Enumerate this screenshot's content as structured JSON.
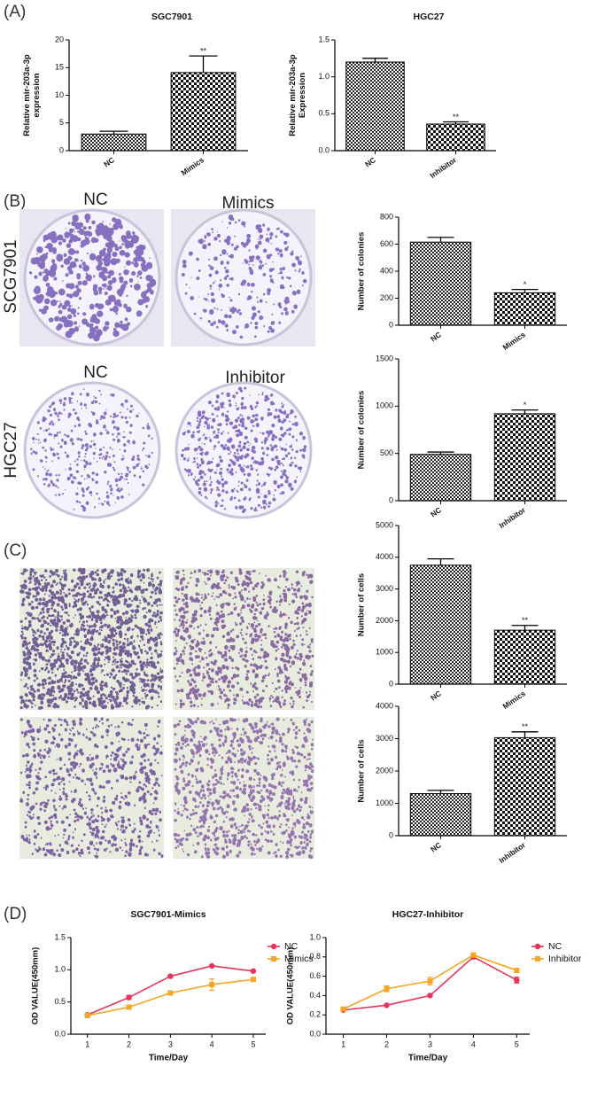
{
  "panel_labels": [
    "(A)",
    "(B)",
    "(C)",
    "(D)"
  ],
  "images": {
    "row_labels": [
      "SCG7901",
      "HGC27"
    ],
    "col_labels": [
      [
        "NC",
        "Mimics"
      ],
      [
        "NC",
        "Inhibitor"
      ]
    ]
  },
  "chart_data": [
    {
      "type": "bar",
      "title": "SGC7901",
      "ylabel": [
        "Relative mir-203a-3p",
        "expression"
      ],
      "categories": [
        "NC",
        "Mimics"
      ],
      "values": [
        3.0,
        14.1
      ],
      "errors": [
        0.5,
        3.0
      ],
      "significance": [
        null,
        "**"
      ],
      "ylim": [
        0,
        20
      ],
      "yticks": [
        0,
        5,
        10,
        15,
        20
      ]
    },
    {
      "type": "bar",
      "title": "HGC27",
      "ylabel": [
        "Relative mir-203a-3p",
        "Expression"
      ],
      "categories": [
        "NC",
        "Inhibitor"
      ],
      "values": [
        1.2,
        0.36
      ],
      "errors": [
        0.05,
        0.03
      ],
      "significance": [
        null,
        "**"
      ],
      "ylim": [
        0,
        1.5
      ],
      "yticks": [
        {
          "value": 0,
          "label": "0.0"
        },
        0.5,
        {
          "value": 1,
          "label": "1.0"
        },
        1.5
      ]
    },
    {
      "type": "bar",
      "ylabel": [
        "Number of colonies"
      ],
      "categories": [
        "NC",
        "Mimics"
      ],
      "values": [
        615,
        240
      ],
      "errors": [
        35,
        25
      ],
      "significance": [
        null,
        "*"
      ],
      "ylim": [
        0,
        800
      ],
      "yticks": [
        0,
        200,
        400,
        600,
        800
      ]
    },
    {
      "type": "bar",
      "ylabel": [
        "Number of colonies"
      ],
      "categories": [
        "NC",
        "Inhibitor"
      ],
      "values": [
        490,
        920
      ],
      "errors": [
        25,
        40
      ],
      "significance": [
        null,
        "*"
      ],
      "ylim": [
        0,
        1500
      ],
      "yticks": [
        0,
        500,
        1000,
        1500
      ]
    },
    {
      "type": "bar",
      "ylabel": [
        "Number of cells"
      ],
      "categories": [
        "NC",
        "Mimics"
      ],
      "values": [
        3750,
        1700
      ],
      "errors": [
        200,
        150
      ],
      "significance": [
        null,
        "**"
      ],
      "ylim": [
        0,
        5000
      ],
      "yticks": [
        0,
        1000,
        2000,
        3000,
        4000,
        5000
      ]
    },
    {
      "type": "bar",
      "ylabel": [
        "Number of cells"
      ],
      "categories": [
        "NC",
        "Inhibitor"
      ],
      "values": [
        1300,
        3030
      ],
      "errors": [
        100,
        180
      ],
      "significance": [
        null,
        "**"
      ],
      "ylim": [
        0,
        4000
      ],
      "yticks": [
        0,
        1000,
        2000,
        3000,
        4000
      ]
    },
    {
      "type": "line",
      "title": "SGC7901-Mimics",
      "xlabel": "Time/Day",
      "ylabel": [
        "OD VALUE(450mm)"
      ],
      "x": [
        1,
        2,
        3,
        4,
        5
      ],
      "xlim": [
        0.6,
        5.3
      ],
      "xticks": [
        1,
        2,
        3,
        4,
        5
      ],
      "ylim": [
        0,
        1.5
      ],
      "yticks": [
        {
          "value": 0,
          "label": "0.0"
        },
        0.5,
        {
          "value": 1,
          "label": "1.0"
        },
        1.5
      ],
      "legend": "right",
      "series": [
        {
          "name": "NC",
          "color": "#e8335a",
          "values": [
            0.3,
            0.57,
            0.9,
            1.06,
            0.98
          ],
          "errors": [
            0.02,
            0.03,
            0.02,
            0.01,
            0.01
          ]
        },
        {
          "name": "Mimics",
          "color": "#f5a623",
          "values": [
            0.29,
            0.42,
            0.64,
            0.77,
            0.85
          ],
          "errors": [
            0.02,
            0.02,
            0.02,
            0.09,
            0.02
          ]
        }
      ]
    },
    {
      "type": "line",
      "title": "HGC27-Inhibitor",
      "xlabel": "Time/Day",
      "ylabel": [
        "OD VALUE(450mm)"
      ],
      "x": [
        1,
        2,
        3,
        4,
        5
      ],
      "xlim": [
        0.6,
        5.3
      ],
      "xticks": [
        1,
        2,
        3,
        4,
        5
      ],
      "ylim": [
        0,
        1
      ],
      "yticks": [
        {
          "value": 0,
          "label": "0.0"
        },
        0.2,
        0.4,
        0.6,
        0.8,
        {
          "value": 1,
          "label": "1.0"
        }
      ],
      "legend": "right",
      "series": [
        {
          "name": "NC",
          "color": "#e8335a",
          "values": [
            0.25,
            0.3,
            0.4,
            0.8,
            0.56
          ],
          "errors": [
            0.01,
            0.01,
            0.01,
            0.02,
            0.03
          ]
        },
        {
          "name": "Inhibitor",
          "color": "#f5a623",
          "values": [
            0.26,
            0.47,
            0.55,
            0.82,
            0.66
          ],
          "errors": [
            0.01,
            0.03,
            0.04,
            0.01,
            0.02
          ]
        }
      ]
    }
  ]
}
